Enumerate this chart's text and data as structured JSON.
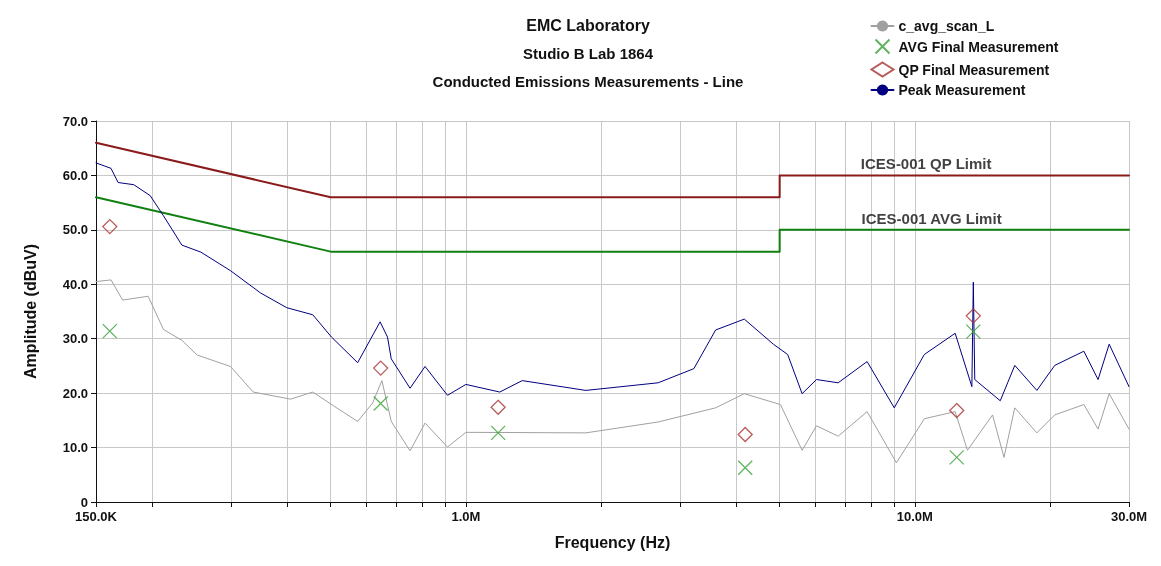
{
  "chart_data": {
    "type": "line",
    "title": "EMC Laboratory",
    "subtitle": "Studio B Lab 1864\nConducted Emissions Measurements - Line",
    "xlabel": "Frequency (Hz)",
    "ylabel": "Amplitude (dBuV)",
    "log": "x",
    "grid": true,
    "legend": "top right",
    "line_style": "solid",
    "xlim": [
      150000,
      30000000
    ],
    "xticks": [
      {
        "value": 150000,
        "label": "150.0K"
      },
      {
        "value": 200000,
        "label": null
      },
      {
        "value": 300000,
        "label": null
      },
      {
        "value": 400000,
        "label": null
      },
      {
        "value": 500000,
        "label": null
      },
      {
        "value": 600000,
        "label": null
      },
      {
        "value": 700000,
        "label": null
      },
      {
        "value": 800000,
        "label": null
      },
      {
        "value": 900000,
        "label": null
      },
      {
        "value": 1000000,
        "label": "1.0M"
      },
      {
        "value": 2000000,
        "label": null
      },
      {
        "value": 3000000,
        "label": null
      },
      {
        "value": 4000000,
        "label": null
      },
      {
        "value": 5000000,
        "label": null
      },
      {
        "value": 6000000,
        "label": null
      },
      {
        "value": 7000000,
        "label": null
      },
      {
        "value": 8000000,
        "label": null
      },
      {
        "value": 9000000,
        "label": null
      },
      {
        "value": 10000000,
        "label": "10.0M"
      },
      {
        "value": 20000000,
        "label": null
      },
      {
        "value": 30000000,
        "label": "30.0M"
      }
    ],
    "ylim": [
      0,
      70
    ],
    "yticks": [
      0,
      {
        "value": 10,
        "label": "10.0"
      },
      {
        "value": 20,
        "label": "20.0"
      },
      {
        "value": 30,
        "label": "30.0"
      },
      {
        "value": 40,
        "label": "40.0"
      },
      {
        "value": 50,
        "label": "50.0"
      },
      {
        "value": 60,
        "label": "60.0"
      },
      {
        "value": 70,
        "label": "70.0"
      }
    ],
    "annotations": [
      {
        "text": "ICES-001 QP Limit",
        "x": 10600000,
        "y": 60
      },
      {
        "text": "ICES-001 AVG Limit",
        "x": 10900000,
        "y": 50
      }
    ],
    "series": [
      {
        "color": "#8b1a1a",
        "x": [
          150000,
          500000,
          5000000,
          5000000,
          30000000
        ],
        "values": [
          66,
          56,
          56,
          60,
          60
        ]
      },
      {
        "color": "#108010",
        "x": [
          150000,
          500000,
          5000000,
          5000000,
          30000000
        ],
        "values": [
          56,
          46,
          46,
          50,
          50
        ]
      },
      {
        "name": "c_avg_scan_L",
        "color": "#a0a0a0",
        "x": [
          150000,
          162000,
          172000,
          196000,
          212000,
          233000,
          252000,
          299000,
          336000,
          407000,
          456000,
          511000,
          574000,
          620000,
          650000,
          682000,
          751000,
          811000,
          910000,
          1000000,
          1850000,
          2680000,
          3600000,
          4170000,
          5020000,
          5610000,
          6040000,
          6750000,
          7830000,
          9100000,
          10500000,
          12300000,
          13100000,
          14900000,
          15800000,
          16700000,
          18700000,
          20500000,
          23800000,
          25600000,
          27100000,
          30000000
        ],
        "values": [
          40.5,
          40.8,
          37.1,
          37.8,
          31.7,
          29.7,
          27.0,
          24.9,
          20.2,
          18.9,
          20.2,
          17.5,
          14.8,
          18.2,
          22.3,
          14.8,
          9.4,
          14.5,
          10.1,
          12.8,
          12.7,
          14.7,
          17.3,
          19.9,
          17.9,
          9.5,
          14.0,
          12.1,
          16.6,
          7.2,
          15.3,
          16.6,
          9.5,
          16.0,
          8.2,
          17.3,
          12.7,
          16.0,
          17.9,
          13.4,
          19.9,
          13.4
        ]
      },
      {
        "name": "Peak Measurement",
        "color": "#000080",
        "x": [
          150000,
          162000,
          168000,
          182000,
          198000,
          212000,
          233000,
          257000,
          299000,
          349000,
          399000,
          456000,
          502000,
          574000,
          644000,
          669000,
          682000,
          751000,
          811000,
          910000,
          1000000,
          1190000,
          1335000,
          1850000,
          2680000,
          3220000,
          3600000,
          4170000,
          4840000,
          5210000,
          5610000,
          6040000,
          6750000,
          7830000,
          9000000,
          10500000,
          12300000,
          13400000,
          13500000,
          13600000,
          15500000,
          16700000,
          18700000,
          20500000,
          23800000,
          25600000,
          27100000,
          30000000
        ],
        "values": [
          62.3,
          61.3,
          58.7,
          58.3,
          56.3,
          52.6,
          47.2,
          45.9,
          42.5,
          38.4,
          35.7,
          34.4,
          30.3,
          25.6,
          33.1,
          30.3,
          26.3,
          20.9,
          24.9,
          19.6,
          21.6,
          20.2,
          22.3,
          20.5,
          21.9,
          24.5,
          31.6,
          33.6,
          29.0,
          27.1,
          19.9,
          22.5,
          21.9,
          25.8,
          17.3,
          27.1,
          31.0,
          21.2,
          40.4,
          22.5,
          18.6,
          25.1,
          20.5,
          25.1,
          27.7,
          22.5,
          29.0,
          21.2
        ]
      },
      {
        "type": "scatter",
        "name": "QP Final Measurement",
        "color": "#a83232",
        "marker": "diamond",
        "x": [
          161000,
          646000,
          1180000,
          4190000,
          12400000,
          13500000
        ],
        "values": [
          50.6,
          24.6,
          17.4,
          12.4,
          16.8,
          34.2
        ]
      },
      {
        "type": "scatter",
        "name": "AVG Final Measurement",
        "color": "#3aa03a",
        "marker": "cross",
        "x": [
          161000,
          646000,
          1180000,
          4190000,
          12400000,
          13500000
        ],
        "values": [
          31.4,
          18.1,
          12.7,
          6.3,
          8.2,
          31.3
        ]
      }
    ]
  }
}
